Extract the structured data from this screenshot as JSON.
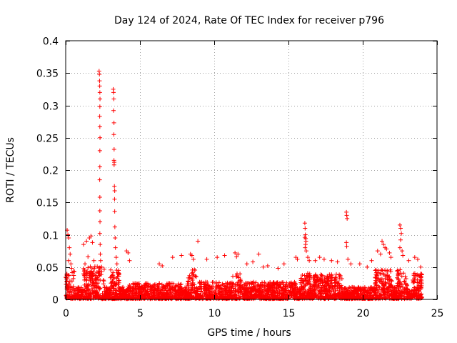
{
  "chart_data": {
    "type": "scatter",
    "title": "Day 124 of 2024, Rate Of TEC Index for receiver p796",
    "xlabel": "GPS time / hours",
    "ylabel": "ROTI / TECUs",
    "xlim": [
      0,
      25
    ],
    "ylim": [
      0,
      0.4
    ],
    "grid": true,
    "x_ticks": [
      0,
      5,
      10,
      15,
      20,
      25
    ],
    "x_tick_labels": [
      "0",
      "5",
      "10",
      "15",
      "20",
      "25"
    ],
    "y_ticks": [
      0,
      0.05,
      0.1,
      0.15,
      0.2,
      0.25,
      0.3,
      0.35,
      0.4
    ],
    "y_tick_labels": [
      "0",
      "0.05",
      "0.1",
      "0.15",
      "0.2",
      "0.25",
      "0.3",
      "0.35",
      "0.4"
    ],
    "marker": "plus",
    "series_color": "#ff0000",
    "series": [
      {
        "name": "ROTI p796",
        "points": [
          [
            0.1,
            0.107
          ],
          [
            0.15,
            0.1
          ],
          [
            0.2,
            0.095
          ],
          [
            0.25,
            0.08
          ],
          [
            0.3,
            0.07
          ],
          [
            0.2,
            0.06
          ],
          [
            0.35,
            0.055
          ],
          [
            0.4,
            0.048
          ],
          [
            1.2,
            0.085
          ],
          [
            1.4,
            0.09
          ],
          [
            1.6,
            0.095
          ],
          [
            1.7,
            0.098
          ],
          [
            1.8,
            0.088
          ],
          [
            1.5,
            0.066
          ],
          [
            1.3,
            0.055
          ],
          [
            1.9,
            0.06
          ],
          [
            2.25,
            0.353
          ],
          [
            2.27,
            0.348
          ],
          [
            2.28,
            0.338
          ],
          [
            2.29,
            0.33
          ],
          [
            2.3,
            0.32
          ],
          [
            2.31,
            0.31
          ],
          [
            2.3,
            0.298
          ],
          [
            2.29,
            0.283
          ],
          [
            2.3,
            0.267
          ],
          [
            2.31,
            0.25
          ],
          [
            2.3,
            0.23
          ],
          [
            2.3,
            0.205
          ],
          [
            2.29,
            0.185
          ],
          [
            2.3,
            0.158
          ],
          [
            2.3,
            0.137
          ],
          [
            2.31,
            0.12
          ],
          [
            2.3,
            0.102
          ],
          [
            2.32,
            0.085
          ],
          [
            2.33,
            0.07
          ],
          [
            2.35,
            0.06
          ],
          [
            2.4,
            0.05
          ],
          [
            3.2,
            0.325
          ],
          [
            3.22,
            0.32
          ],
          [
            3.24,
            0.31
          ],
          [
            3.22,
            0.292
          ],
          [
            3.25,
            0.273
          ],
          [
            3.24,
            0.255
          ],
          [
            3.26,
            0.232
          ],
          [
            3.25,
            0.215
          ],
          [
            3.27,
            0.212
          ],
          [
            3.26,
            0.208
          ],
          [
            3.28,
            0.175
          ],
          [
            3.3,
            0.168
          ],
          [
            3.29,
            0.155
          ],
          [
            3.3,
            0.136
          ],
          [
            3.31,
            0.112
          ],
          [
            3.33,
            0.095
          ],
          [
            3.35,
            0.08
          ],
          [
            3.4,
            0.065
          ],
          [
            3.45,
            0.055
          ],
          [
            4.1,
            0.075
          ],
          [
            4.2,
            0.072
          ],
          [
            4.3,
            0.06
          ],
          [
            6.3,
            0.055
          ],
          [
            6.5,
            0.052
          ],
          [
            7.2,
            0.065
          ],
          [
            7.8,
            0.068
          ],
          [
            8.4,
            0.07
          ],
          [
            8.5,
            0.068
          ],
          [
            8.6,
            0.062
          ],
          [
            8.9,
            0.09
          ],
          [
            9.5,
            0.062
          ],
          [
            10.2,
            0.065
          ],
          [
            10.7,
            0.068
          ],
          [
            11.4,
            0.072
          ],
          [
            11.6,
            0.07
          ],
          [
            11.5,
            0.066
          ],
          [
            12.2,
            0.055
          ],
          [
            12.6,
            0.058
          ],
          [
            13.0,
            0.07
          ],
          [
            13.3,
            0.05
          ],
          [
            13.6,
            0.052
          ],
          [
            14.3,
            0.048
          ],
          [
            14.7,
            0.055
          ],
          [
            15.5,
            0.065
          ],
          [
            15.6,
            0.062
          ],
          [
            16.1,
            0.118
          ],
          [
            16.12,
            0.11
          ],
          [
            16.14,
            0.1
          ],
          [
            16.1,
            0.096
          ],
          [
            16.16,
            0.094
          ],
          [
            16.18,
            0.09
          ],
          [
            16.15,
            0.085
          ],
          [
            16.12,
            0.08
          ],
          [
            16.2,
            0.075
          ],
          [
            16.3,
            0.065
          ],
          [
            16.4,
            0.06
          ],
          [
            16.8,
            0.06
          ],
          [
            17.1,
            0.065
          ],
          [
            17.4,
            0.062
          ],
          [
            17.9,
            0.06
          ],
          [
            18.3,
            0.058
          ],
          [
            18.9,
            0.135
          ],
          [
            18.92,
            0.13
          ],
          [
            18.95,
            0.125
          ],
          [
            18.9,
            0.088
          ],
          [
            18.92,
            0.082
          ],
          [
            19.0,
            0.062
          ],
          [
            19.2,
            0.055
          ],
          [
            19.8,
            0.055
          ],
          [
            20.3,
            0.05
          ],
          [
            20.6,
            0.06
          ],
          [
            21.0,
            0.075
          ],
          [
            21.2,
            0.07
          ],
          [
            21.3,
            0.09
          ],
          [
            21.4,
            0.085
          ],
          [
            21.5,
            0.08
          ],
          [
            21.6,
            0.078
          ],
          [
            21.8,
            0.072
          ],
          [
            21.9,
            0.065
          ],
          [
            22.5,
            0.115
          ],
          [
            22.55,
            0.11
          ],
          [
            22.6,
            0.102
          ],
          [
            22.55,
            0.092
          ],
          [
            22.5,
            0.08
          ],
          [
            22.65,
            0.075
          ],
          [
            22.7,
            0.068
          ],
          [
            23.1,
            0.06
          ],
          [
            23.5,
            0.065
          ],
          [
            23.7,
            0.062
          ],
          [
            23.9,
            0.05
          ]
        ]
      }
    ]
  }
}
